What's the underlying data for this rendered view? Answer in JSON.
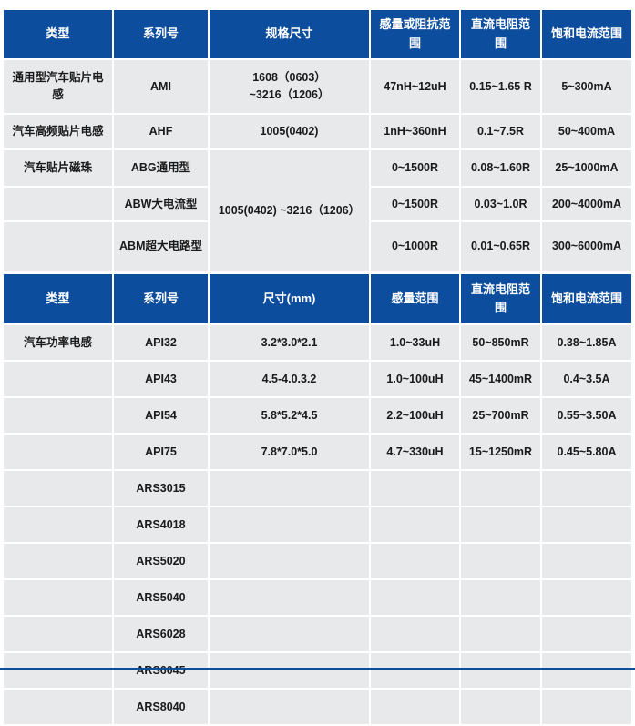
{
  "theme": {
    "header_blue": "#0d4d9e",
    "cell_gray": "#e8e9eb",
    "header_text_color": "#ffffff",
    "cell_text_color": "#1a1a1a",
    "bottom_bar_color": "#0d4d9e"
  },
  "tables": [
    {
      "name": "automotive-chip-inductor-table",
      "headers": [
        "类型",
        "系列号",
        "规格尺寸",
        "感量或阻抗范围",
        "直流电阻范围",
        "饱和电流范围"
      ],
      "rows": [
        [
          {
            "t": "通用型汽车贴片电感"
          },
          {
            "t": "AMI"
          },
          {
            "t": "1608（0603）\n~3216（1206）"
          },
          {
            "t": "47nH~12uH"
          },
          {
            "t": "0.15~1.65 R"
          },
          {
            "t": "5~300mA"
          }
        ],
        [
          {
            "t": "汽车高频贴片电感"
          },
          {
            "t": "AHF"
          },
          {
            "t": "1005(0402)"
          },
          {
            "t": "1nH~360nH"
          },
          {
            "t": "0.1~7.5R"
          },
          {
            "t": "50~400mA"
          }
        ],
        [
          {
            "t": "汽车贴片磁珠"
          },
          {
            "t": "ABG通用型"
          },
          {
            "t": "1005(0402) ~3216（1206）",
            "rs": 3
          },
          {
            "t": "0~1500R"
          },
          {
            "t": "0.08~1.60R"
          },
          {
            "t": "25~1000mA"
          }
        ],
        [
          {
            "t": ""
          },
          {
            "t": "ABW大电流型"
          },
          null,
          {
            "t": "0~1500R"
          },
          {
            "t": "0.03~1.0R"
          },
          {
            "t": "200~4000mA"
          }
        ],
        [
          {
            "t": ""
          },
          {
            "t": "ABM超大电路型"
          },
          null,
          {
            "t": "0~1000R"
          },
          {
            "t": "0.01~0.65R"
          },
          {
            "t": "300~6000mA"
          }
        ]
      ]
    },
    {
      "name": "automotive-power-inductor-table",
      "headers": [
        "类型",
        "系列号",
        "尺寸(mm)",
        "感量范围",
        "直流电阻范围",
        "饱和电流范围"
      ],
      "rows": [
        [
          {
            "t": "汽车功率电感"
          },
          {
            "t": "API32"
          },
          {
            "t": "3.2*3.0*2.1"
          },
          {
            "t": "1.0~33uH"
          },
          {
            "t": "50~850mR"
          },
          {
            "t": "0.38~1.85A"
          }
        ],
        [
          {
            "t": ""
          },
          {
            "t": "API43"
          },
          {
            "t": "4.5-4.0.3.2"
          },
          {
            "t": "1.0~100uH"
          },
          {
            "t": "45~1400mR"
          },
          {
            "t": "0.4~3.5A"
          }
        ],
        [
          {
            "t": ""
          },
          {
            "t": "API54"
          },
          {
            "t": "5.8*5.2*4.5"
          },
          {
            "t": "2.2~100uH"
          },
          {
            "t": "25~700mR"
          },
          {
            "t": "0.55~3.50A"
          }
        ],
        [
          {
            "t": ""
          },
          {
            "t": "API75"
          },
          {
            "t": "7.8*7.0*5.0"
          },
          {
            "t": "4.7~330uH"
          },
          {
            "t": "15~1250mR"
          },
          {
            "t": "0.45~5.80A"
          }
        ],
        [
          {
            "t": ""
          },
          {
            "t": "ARS3015"
          },
          {
            "t": ""
          },
          {
            "t": ""
          },
          {
            "t": ""
          },
          {
            "t": ""
          }
        ],
        [
          {
            "t": ""
          },
          {
            "t": "ARS4018"
          },
          {
            "t": ""
          },
          {
            "t": ""
          },
          {
            "t": ""
          },
          {
            "t": ""
          }
        ],
        [
          {
            "t": ""
          },
          {
            "t": "ARS5020"
          },
          {
            "t": ""
          },
          {
            "t": ""
          },
          {
            "t": ""
          },
          {
            "t": ""
          }
        ],
        [
          {
            "t": ""
          },
          {
            "t": "ARS5040"
          },
          {
            "t": ""
          },
          {
            "t": ""
          },
          {
            "t": ""
          },
          {
            "t": ""
          }
        ],
        [
          {
            "t": ""
          },
          {
            "t": "ARS6028"
          },
          {
            "t": ""
          },
          {
            "t": ""
          },
          {
            "t": ""
          },
          {
            "t": ""
          }
        ],
        [
          {
            "t": ""
          },
          {
            "t": "ARS6045"
          },
          {
            "t": ""
          },
          {
            "t": ""
          },
          {
            "t": ""
          },
          {
            "t": ""
          }
        ],
        [
          {
            "t": ""
          },
          {
            "t": "ARS8040"
          },
          {
            "t": ""
          },
          {
            "t": ""
          },
          {
            "t": ""
          },
          {
            "t": ""
          }
        ]
      ]
    }
  ]
}
